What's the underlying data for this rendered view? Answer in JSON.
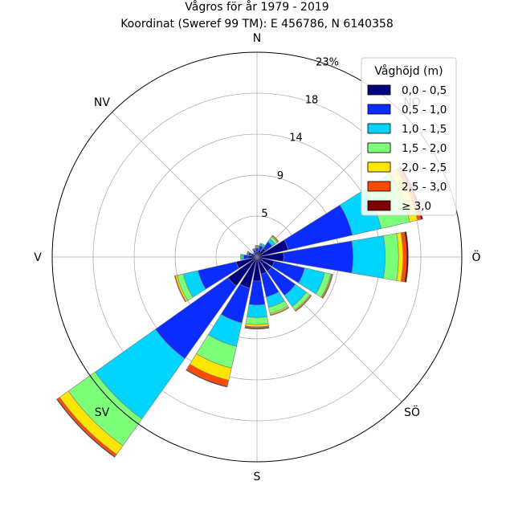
{
  "chart_data": {
    "type": "wind_rose",
    "title": "Vågros för år 1979 - 2019",
    "subtitle": "Koordinat (Sweref 99 TM): E 456786, N 6140358",
    "directions": [
      "N",
      "NO",
      "Ö",
      "SÖ",
      "S",
      "SV",
      "V",
      "NV"
    ],
    "radial_ticks": [
      "5",
      "9",
      "14",
      "18",
      "23%"
    ],
    "radial_tick_values": [
      4.6,
      9.2,
      13.8,
      18.4,
      23
    ],
    "rmax": 23,
    "grid": true,
    "legend": {
      "title": "Våghöjd (m)",
      "position": "top-right",
      "bins": [
        "0,0 - 0,5",
        "0,5 - 1,0",
        "1,0 - 1,5",
        "1,5 - 2,0",
        "2,0 - 2,5",
        "2,5 - 3,0",
        "≥ 3,0"
      ],
      "colors": [
        "#000080",
        "#0a2cff",
        "#00d4ff",
        "#7cff79",
        "#ffe600",
        "#ff4a00",
        "#7f0000"
      ]
    },
    "sectors": [
      {
        "angle": 0,
        "cum": [
          0.6,
          1.0,
          1.1,
          1.2,
          1.25,
          1.3,
          1.3
        ]
      },
      {
        "angle": 22.5,
        "cum": [
          0.8,
          1.3,
          1.5,
          1.6,
          1.6,
          1.6,
          1.6
        ]
      },
      {
        "angle": 45,
        "cum": [
          1.2,
          2.1,
          2.5,
          2.8,
          2.9,
          3.0,
          3.0
        ]
      },
      {
        "angle": 67.5,
        "cum": [
          3.6,
          11.0,
          14.3,
          17.6,
          18.5,
          18.9,
          19.1
        ]
      },
      {
        "angle": 90,
        "cum": [
          3.0,
          10.8,
          14.4,
          15.9,
          16.4,
          16.8,
          17.0
        ]
      },
      {
        "angle": 112.5,
        "cum": [
          2.0,
          5.5,
          7.8,
          8.5,
          8.6,
          8.7,
          8.75
        ]
      },
      {
        "angle": 135,
        "cum": [
          2.0,
          5.3,
          6.8,
          7.3,
          7.4,
          7.5,
          7.5
        ]
      },
      {
        "angle": 157.5,
        "cum": [
          2.0,
          4.6,
          5.8,
          6.5,
          6.65,
          6.7,
          6.75
        ]
      },
      {
        "angle": 180,
        "cum": [
          2.7,
          5.4,
          6.8,
          7.6,
          7.85,
          8.0,
          8.1
        ]
      },
      {
        "angle": 202.5,
        "cum": [
          3.6,
          7.6,
          10.3,
          12.8,
          14.2,
          14.9,
          15.0
        ]
      },
      {
        "angle": 225,
        "cum": [
          4.0,
          14.0,
          22.3,
          26.0,
          27.2,
          27.5,
          27.6
        ]
      },
      {
        "angle": 247.5,
        "cum": [
          2.4,
          6.8,
          8.5,
          9.2,
          9.4,
          9.5,
          9.5
        ]
      },
      {
        "angle": 270,
        "cum": [
          1.0,
          1.5,
          1.7,
          1.8,
          1.85,
          1.85,
          1.85
        ]
      },
      {
        "angle": 292.5,
        "cum": [
          0.7,
          1.0,
          1.1,
          1.15,
          1.2,
          1.2,
          1.2
        ]
      },
      {
        "angle": 315,
        "cum": [
          0.3,
          0.5,
          0.6,
          0.6,
          0.6,
          0.6,
          0.6
        ]
      },
      {
        "angle": 337.5,
        "cum": [
          0.5,
          0.8,
          0.9,
          0.95,
          1.0,
          1.0,
          1.0
        ]
      }
    ]
  }
}
